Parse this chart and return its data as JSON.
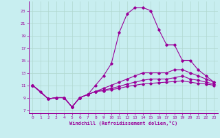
{
  "xlabel": "Windchill (Refroidissement éolien,°C)",
  "bg_color": "#c8eef0",
  "line_color": "#990099",
  "grid_color": "#b0d8d0",
  "xlim": [
    -0.5,
    23.5
  ],
  "ylim": [
    6.5,
    24.5
  ],
  "yticks": [
    7,
    9,
    11,
    13,
    15,
    17,
    19,
    21,
    23
  ],
  "xticks": [
    0,
    1,
    2,
    3,
    4,
    5,
    6,
    7,
    8,
    9,
    10,
    11,
    12,
    13,
    14,
    15,
    16,
    17,
    18,
    19,
    20,
    21,
    22,
    23
  ],
  "curve1_x": [
    0,
    1,
    2,
    3,
    4,
    5,
    6,
    7,
    8,
    9,
    10,
    11,
    12,
    13,
    14,
    15,
    16,
    17,
    18,
    19,
    20,
    21,
    22,
    23
  ],
  "curve1_y": [
    11.0,
    10.0,
    8.8,
    9.0,
    9.0,
    7.5,
    9.0,
    9.5,
    11.0,
    12.5,
    14.5,
    19.5,
    22.5,
    23.5,
    23.5,
    23.0,
    20.0,
    17.5,
    17.5,
    15.0,
    15.0,
    13.5,
    12.5,
    11.5
  ],
  "curve2_x": [
    0,
    2,
    3,
    4,
    5,
    6,
    7,
    8,
    9,
    10,
    11,
    12,
    13,
    14,
    15,
    16,
    17,
    18,
    19,
    20,
    21,
    22,
    23
  ],
  "curve2_y": [
    11.0,
    8.8,
    9.0,
    9.0,
    7.5,
    9.0,
    9.5,
    10.0,
    10.5,
    11.0,
    11.5,
    12.0,
    12.5,
    13.0,
    13.0,
    13.0,
    13.0,
    13.5,
    13.5,
    13.0,
    12.5,
    12.0,
    11.5
  ],
  "curve3_x": [
    0,
    2,
    3,
    4,
    5,
    6,
    7,
    8,
    9,
    10,
    11,
    12,
    13,
    14,
    15,
    16,
    17,
    18,
    19,
    20,
    21,
    22,
    23
  ],
  "curve3_y": [
    11.0,
    8.8,
    9.0,
    9.0,
    7.5,
    9.0,
    9.5,
    10.0,
    10.2,
    10.5,
    10.8,
    11.2,
    11.5,
    11.8,
    12.0,
    12.0,
    12.0,
    12.2,
    12.5,
    12.0,
    11.8,
    11.5,
    11.2
  ],
  "curve4_x": [
    0,
    2,
    3,
    4,
    5,
    6,
    7,
    8,
    9,
    10,
    11,
    12,
    13,
    14,
    15,
    16,
    17,
    18,
    19,
    20,
    21,
    22,
    23
  ],
  "curve4_y": [
    11.0,
    8.8,
    9.0,
    9.0,
    7.5,
    9.0,
    9.5,
    10.0,
    10.1,
    10.3,
    10.5,
    10.8,
    11.0,
    11.2,
    11.3,
    11.4,
    11.5,
    11.6,
    11.7,
    11.5,
    11.3,
    11.2,
    11.0
  ]
}
